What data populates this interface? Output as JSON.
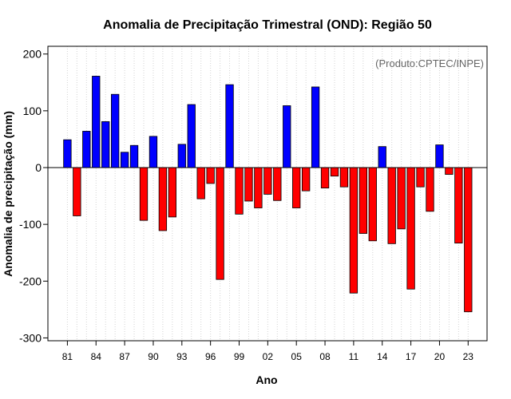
{
  "chart_data": {
    "type": "bar",
    "title": "Anomalia de Precipitação Trimestral (OND): Região 50",
    "xlabel": "Ano",
    "ylabel": "Anomalia de precipitação (mm)",
    "annotation": "(Produto:CPTEC/INPE)",
    "ylim": [
      -300,
      210
    ],
    "yticks": [
      -300,
      -200,
      -100,
      0,
      100,
      200
    ],
    "ytick_labels": [
      "-300",
      "-200",
      "-100",
      "0",
      "100",
      "200"
    ],
    "x": [
      1981,
      1982,
      1983,
      1984,
      1985,
      1986,
      1987,
      1988,
      1989,
      1990,
      1991,
      1992,
      1993,
      1994,
      1995,
      1996,
      1997,
      1998,
      1999,
      2000,
      2001,
      2002,
      2003,
      2004,
      2005,
      2006,
      2007,
      2008,
      2009,
      2010,
      2011,
      2012,
      2013,
      2014,
      2015,
      2016,
      2017,
      2018,
      2019,
      2020,
      2021,
      2022,
      2023
    ],
    "values": [
      49,
      -85,
      64,
      161,
      81,
      129,
      27,
      39,
      -93,
      55,
      -111,
      -87,
      41,
      111,
      -55,
      -28,
      -197,
      146,
      -82,
      -59,
      -71,
      -47,
      -58,
      109,
      -71,
      -41,
      142,
      -36,
      -15,
      -34,
      -221,
      -116,
      -129,
      37,
      -134,
      -108,
      -214,
      -34,
      -77,
      40,
      -12,
      -133,
      -254
    ],
    "xtick_years": [
      1981,
      1984,
      1987,
      1990,
      1993,
      1996,
      1999,
      2002,
      2005,
      2008,
      2011,
      2014,
      2017,
      2020,
      2023
    ],
    "xtick_labels": [
      "81",
      "84",
      "87",
      "90",
      "93",
      "96",
      "99",
      "02",
      "05",
      "08",
      "11",
      "14",
      "17",
      "20",
      "23"
    ],
    "grid": "vertical-dotted",
    "colors": {
      "positive": "#0000ff",
      "negative": "#ff0000",
      "grid": "#d3d3d3",
      "annotation": "#666666"
    }
  }
}
